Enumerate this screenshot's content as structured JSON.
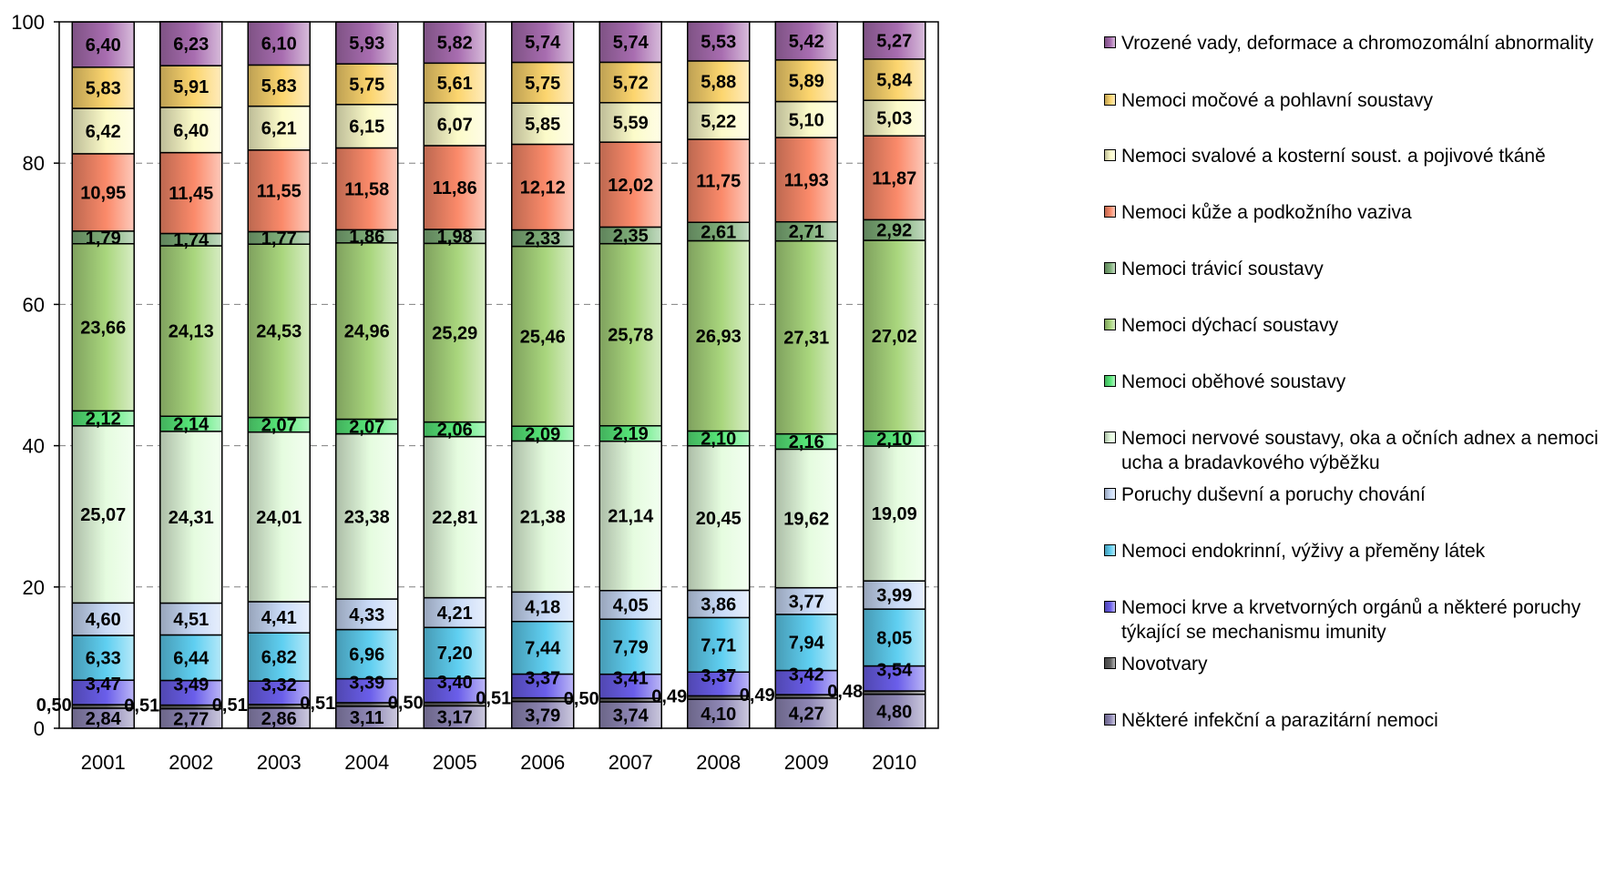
{
  "chart_data": {
    "type": "bar",
    "stacked": true,
    "categories": [
      "2001",
      "2002",
      "2003",
      "2004",
      "2005",
      "2006",
      "2007",
      "2008",
      "2009",
      "2010"
    ],
    "ylim": [
      0,
      100
    ],
    "yticks": [
      "0",
      "20",
      "40",
      "60",
      "80",
      "100"
    ],
    "grid": "horizontal dashed",
    "legend_position": "right",
    "series": [
      {
        "name": "Některé infekční a parazitární nemoci",
        "color": "#8E87B5",
        "labels": [
          "2,84",
          "2,77",
          "2,86",
          "3,11",
          "3,17",
          "3,79",
          "3,74",
          "4,10",
          "4,27",
          "4,80"
        ],
        "values": [
          2.84,
          2.77,
          2.86,
          3.11,
          3.17,
          3.79,
          3.74,
          4.1,
          4.27,
          4.8
        ]
      },
      {
        "name": "Novotvary",
        "color": "#5E5E5E",
        "labels": [
          "0,50",
          "0,51",
          "0,51",
          "0,51",
          "0,50",
          "0,51",
          "0,50",
          "0,49",
          "0,49",
          "0,48"
        ],
        "values": [
          0.5,
          0.51,
          0.51,
          0.51,
          0.5,
          0.51,
          0.5,
          0.49,
          0.49,
          0.48
        ]
      },
      {
        "name": "Nemoci krve a krvetvorných orgánů a některé poruchy týkající se mechanismu imunity",
        "color": "#6A5EEA",
        "labels": [
          "3,47",
          "3,49",
          "3,32",
          "3,39",
          "3,40",
          "3,37",
          "3,41",
          "3,37",
          "3,42",
          "3,54"
        ],
        "values": [
          3.47,
          3.49,
          3.32,
          3.39,
          3.4,
          3.37,
          3.41,
          3.37,
          3.42,
          3.54
        ]
      },
      {
        "name": "Nemoci endokrinní, výživy a přeměny látek",
        "color": "#5FCFF1",
        "labels": [
          "6,33",
          "6,44",
          "6,82",
          "6,96",
          "7,20",
          "7,44",
          "7,79",
          "7,71",
          "7,94",
          "8,05"
        ],
        "values": [
          6.33,
          6.44,
          6.82,
          6.96,
          7.2,
          7.44,
          7.79,
          7.71,
          7.94,
          8.05
        ]
      },
      {
        "name": "Poruchy duševní a poruchy chování",
        "color": "#C9DBF8",
        "labels": [
          "4,60",
          "4,51",
          "4,41",
          "4,33",
          "4,21",
          "4,18",
          "4,05",
          "3,86",
          "3,77",
          "3,99"
        ],
        "values": [
          4.6,
          4.51,
          4.41,
          4.33,
          4.21,
          4.18,
          4.05,
          3.86,
          3.77,
          3.99
        ]
      },
      {
        "name": "Nemoci nervové soustavy, oka a očních adnex a nemoci ucha a bradavkového výběžku",
        "color": "#E5FCDF",
        "labels": [
          "25,07",
          "24,31",
          "24,01",
          "23,38",
          "22,81",
          "21,38",
          "21,14",
          "20,45",
          "19,62",
          "19,09"
        ],
        "values": [
          25.07,
          24.31,
          24.01,
          23.38,
          22.81,
          21.38,
          21.14,
          20.45,
          19.62,
          19.09
        ]
      },
      {
        "name": "Nemoci oběhové soustavy",
        "color": "#58EA7A",
        "labels": [
          "2,12",
          "2,14",
          "2,07",
          "2,07",
          "2,06",
          "2,09",
          "2,19",
          "2,10",
          "2,16",
          "2,10"
        ],
        "values": [
          2.12,
          2.14,
          2.07,
          2.07,
          2.06,
          2.09,
          2.19,
          2.1,
          2.16,
          2.1
        ]
      },
      {
        "name": "Nemoci dýchací soustavy",
        "color": "#A9D67D",
        "labels": [
          "23,66",
          "24,13",
          "24,53",
          "24,96",
          "25,29",
          "25,46",
          "25,78",
          "26,93",
          "27,31",
          "27,02"
        ],
        "values": [
          23.66,
          24.13,
          24.53,
          24.96,
          25.29,
          25.46,
          25.78,
          26.93,
          27.31,
          27.02
        ]
      },
      {
        "name": "Nemoci trávicí soustavy",
        "color": "#7FAF79",
        "labels": [
          "1,79",
          "1,74",
          "1,77",
          "1,86",
          "1,98",
          "2,33",
          "2,35",
          "2,61",
          "2,71",
          "2,92"
        ],
        "values": [
          1.79,
          1.74,
          1.77,
          1.86,
          1.98,
          2.33,
          2.35,
          2.61,
          2.71,
          2.92
        ]
      },
      {
        "name": "Nemoci kůže a podkožního vaziva",
        "color": "#FB8A6A",
        "labels": [
          "10,95",
          "11,45",
          "11,55",
          "11,58",
          "11,86",
          "12,12",
          "12,02",
          "11,75",
          "11,93",
          "11,87"
        ],
        "values": [
          10.95,
          11.45,
          11.55,
          11.58,
          11.86,
          12.12,
          12.02,
          11.75,
          11.93,
          11.87
        ]
      },
      {
        "name": "Nemoci svalové a kosterní soust. a pojivové tkáně",
        "color": "#FCFBC9",
        "labels": [
          "6,42",
          "6,40",
          "6,21",
          "6,15",
          "6,07",
          "5,85",
          "5,59",
          "5,22",
          "5,10",
          "5,03"
        ],
        "values": [
          6.42,
          6.4,
          6.21,
          6.15,
          6.07,
          5.85,
          5.59,
          5.22,
          5.1,
          5.03
        ]
      },
      {
        "name": "Nemoci močové a pohlavní soustavy",
        "color": "#FCD56E",
        "labels": [
          "5,83",
          "5,91",
          "5,83",
          "5,75",
          "5,61",
          "5,75",
          "5,72",
          "5,88",
          "5,89",
          "5,84"
        ],
        "values": [
          5.83,
          5.91,
          5.83,
          5.75,
          5.61,
          5.75,
          5.72,
          5.88,
          5.89,
          5.84
        ]
      },
      {
        "name": "Vrozené vady, deformace  a chromozomální abnormality",
        "color": "#A86DB0",
        "labels": [
          "6,40",
          "6,23",
          "6,10",
          "5,93",
          "5,82",
          "5,74",
          "5,74",
          "5,53",
          "5,42",
          "5,27"
        ],
        "values": [
          6.4,
          6.23,
          6.1,
          5.93,
          5.82,
          5.74,
          5.74,
          5.53,
          5.42,
          5.27
        ]
      }
    ]
  }
}
